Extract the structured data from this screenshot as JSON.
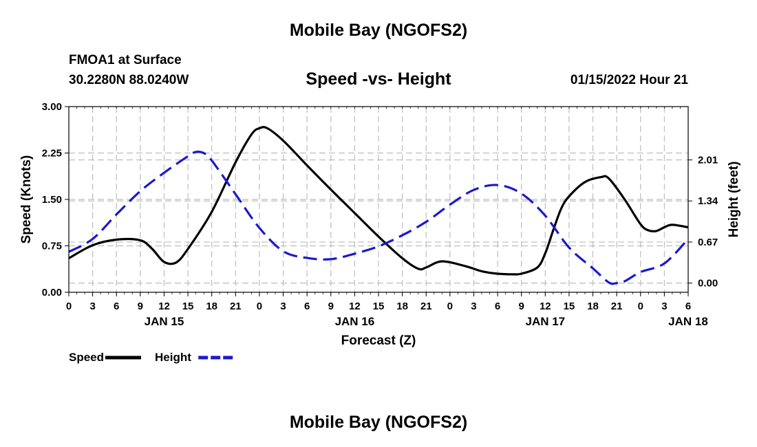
{
  "header": {
    "title": "Mobile Bay (NGOFS2)",
    "station": "FMOA1 at Surface",
    "coords": "30.2280N  88.0240W",
    "subtitle": "Speed -vs- Height",
    "datetime": "01/15/2022 Hour 21"
  },
  "footer": {
    "title": "Mobile Bay (NGOFS2)"
  },
  "chart_data": {
    "type": "line",
    "xlabel": "Forecast (Z)",
    "ylabel_left": "Speed (Knots)",
    "ylabel_right": "Height (feet)",
    "x_ticks": [
      "0",
      "3",
      "6",
      "9",
      "12",
      "15",
      "18",
      "21",
      "0",
      "3",
      "6",
      "9",
      "12",
      "15",
      "18",
      "21",
      "0",
      "3",
      "6",
      "9",
      "12",
      "15",
      "18",
      "21",
      "0",
      "3",
      "6"
    ],
    "day_labels": [
      {
        "label": "JAN 15",
        "hour": 12
      },
      {
        "label": "JAN 16",
        "hour": 36
      },
      {
        "label": "JAN 17",
        "hour": 60
      },
      {
        "label": "JAN 18",
        "hour": 78
      }
    ],
    "xlim": [
      0,
      78
    ],
    "ylim_left": [
      0,
      3
    ],
    "left_ticks": [
      "0.00",
      "0.75",
      "1.50",
      "2.25",
      "3.00"
    ],
    "ylim_right": [
      -0.15,
      2.88
    ],
    "right_ticks": [
      "0.00",
      "0.67",
      "1.34",
      "2.01"
    ],
    "grid": true,
    "series": [
      {
        "name": "Speed",
        "axis": "left",
        "color": "#000000",
        "dash": "solid",
        "x": [
          0,
          3,
          6,
          9,
          10.5,
          12,
          13.5,
          15,
          18,
          21,
          23,
          24,
          25,
          27,
          30,
          33,
          36,
          39,
          42,
          44,
          45,
          47,
          50,
          52,
          54,
          56,
          57,
          59,
          60,
          61,
          62,
          63,
          65,
          67,
          68,
          70,
          72,
          73,
          74,
          75,
          76,
          78
        ],
        "y": [
          0.55,
          0.76,
          0.85,
          0.84,
          0.7,
          0.49,
          0.48,
          0.7,
          1.3,
          2.1,
          2.55,
          2.65,
          2.65,
          2.45,
          2.05,
          1.66,
          1.28,
          0.9,
          0.55,
          0.38,
          0.4,
          0.5,
          0.42,
          0.34,
          0.3,
          0.29,
          0.3,
          0.4,
          0.63,
          1.0,
          1.35,
          1.55,
          1.78,
          1.86,
          1.84,
          1.5,
          1.1,
          1.0,
          0.99,
          1.05,
          1.09,
          1.05
        ]
      },
      {
        "name": "Height",
        "axis": "right",
        "color": "#1a1acc",
        "dash": "dashed",
        "x": [
          0,
          3,
          6,
          9,
          12,
          15,
          16,
          17,
          18,
          21,
          24,
          27,
          30,
          33,
          36,
          39,
          42,
          45,
          48,
          51,
          54,
          57,
          60,
          63,
          66,
          68,
          69,
          70,
          72,
          75,
          78
        ],
        "y": [
          0.51,
          0.72,
          1.12,
          1.5,
          1.8,
          2.07,
          2.14,
          2.12,
          2.0,
          1.45,
          0.9,
          0.52,
          0.41,
          0.39,
          0.48,
          0.6,
          0.78,
          1.0,
          1.28,
          1.52,
          1.6,
          1.46,
          1.1,
          0.58,
          0.24,
          0.01,
          0.0,
          0.03,
          0.18,
          0.32,
          0.72
        ]
      }
    ],
    "legend": {
      "placement": "bottom-left",
      "items": [
        {
          "label": "Speed",
          "color": "#000000",
          "dash": "solid"
        },
        {
          "label": "Height",
          "color": "#1a1acc",
          "dash": "dashed"
        }
      ]
    }
  }
}
